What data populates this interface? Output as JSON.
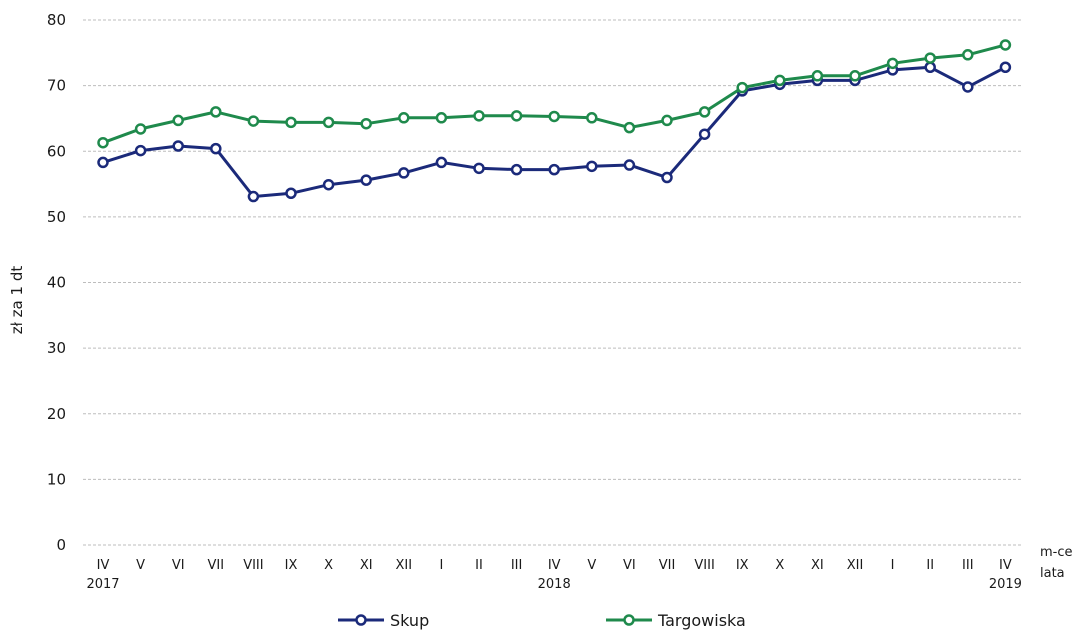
{
  "chart_data": {
    "type": "line",
    "ylabel": "zł za 1 dt",
    "xlabel": "m-ce",
    "xlabel2": "lata",
    "ylim": [
      0,
      80
    ],
    "yticks": [
      "0",
      "10",
      "20",
      "30",
      "40",
      "50",
      "60",
      "70",
      "80"
    ],
    "categories": [
      "IV",
      "V",
      "VI",
      "VII",
      "VIII",
      "IX",
      "X",
      "XI",
      "XII",
      "I",
      "II",
      "III",
      "IV",
      "V",
      "VI",
      "VII",
      "VIII",
      "IX",
      "X",
      "XI",
      "XII",
      "I",
      "II",
      "III",
      "IV"
    ],
    "years": [
      {
        "index": 0,
        "label": "2017"
      },
      {
        "index": 12,
        "label": "2018"
      },
      {
        "index": 24,
        "label": "2019"
      }
    ],
    "grid": true,
    "legend_position": "bottom",
    "series": [
      {
        "name": "Skup",
        "color": "#1b2a7a",
        "values": [
          58.3,
          60.1,
          60.8,
          60.4,
          53.1,
          53.6,
          54.9,
          55.6,
          56.7,
          58.3,
          57.4,
          57.2,
          57.2,
          57.7,
          57.9,
          56.0,
          62.6,
          69.2,
          70.2,
          70.8,
          70.8,
          72.4,
          72.8,
          69.8,
          72.8
        ]
      },
      {
        "name": "Targowiska",
        "color": "#1f8a4c",
        "values": [
          61.3,
          63.4,
          64.7,
          66.0,
          64.6,
          64.4,
          64.4,
          64.2,
          65.1,
          65.1,
          65.4,
          65.4,
          65.3,
          65.1,
          63.6,
          64.7,
          66.0,
          69.7,
          70.8,
          71.5,
          71.5,
          73.4,
          74.2,
          74.7,
          76.2
        ]
      }
    ]
  }
}
